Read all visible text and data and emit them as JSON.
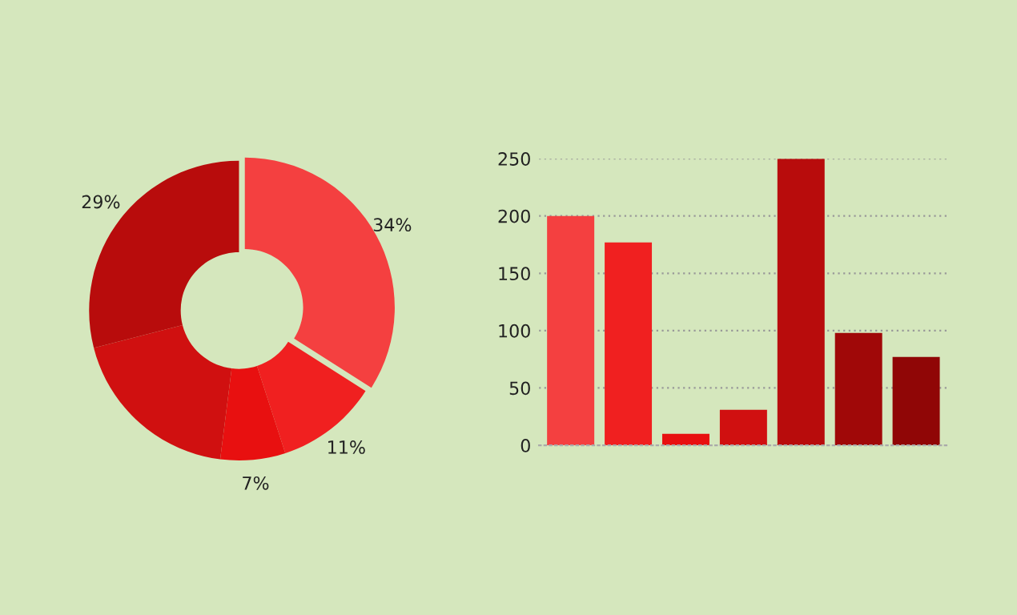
{
  "chart_data": [
    {
      "type": "donut",
      "categories": [
        null,
        null,
        null,
        null,
        null
      ],
      "values": [
        34,
        11,
        7,
        19,
        29
      ],
      "value_labels": [
        "34%",
        "11%",
        "7%",
        null,
        "29%"
      ],
      "colors": [
        "#f44040",
        "#f02020",
        "#e81010",
        "#d01010",
        "#b80c0c"
      ]
    },
    {
      "type": "bar",
      "categories": [
        null,
        null,
        null,
        null,
        null,
        null,
        null
      ],
      "values": [
        200,
        177,
        10,
        31,
        250,
        98,
        77
      ],
      "colors": [
        "#f44040",
        "#f02020",
        "#e81010",
        "#d01010",
        "#b80c0c",
        "#a00808",
        "#900606"
      ],
      "ylim": [
        0,
        250
      ],
      "yticks": [
        0,
        50,
        100,
        150,
        200,
        250
      ],
      "grid": "y"
    }
  ]
}
